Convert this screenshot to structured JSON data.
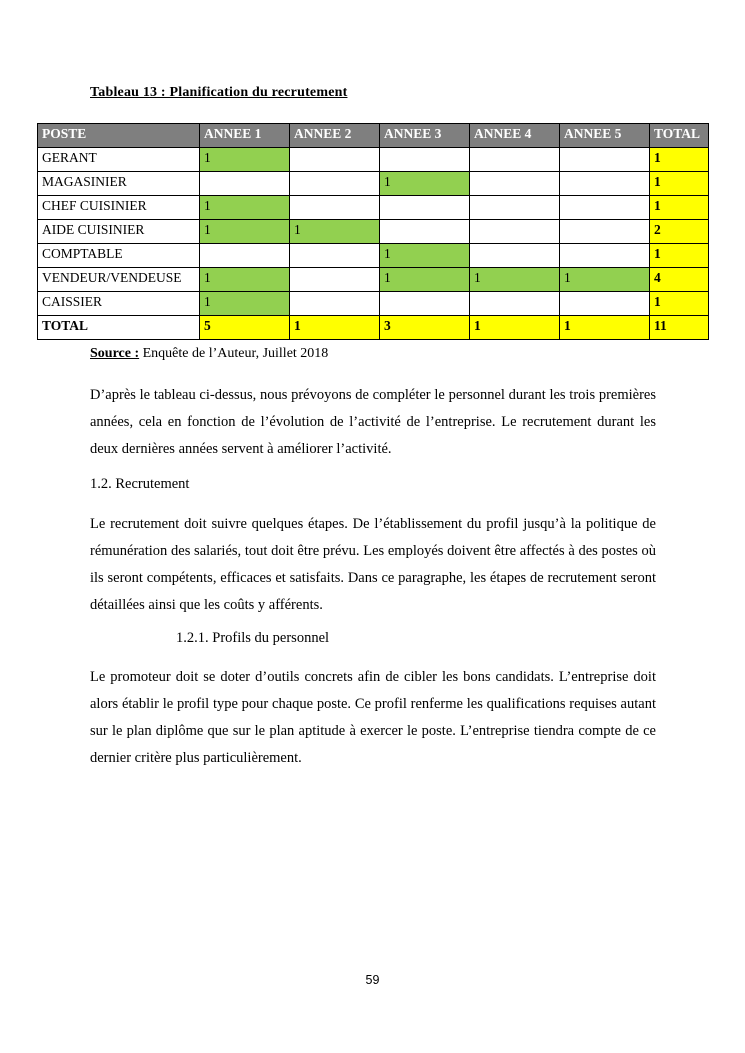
{
  "document": {
    "table_caption": "Tableau 13 : Planification du recrutement",
    "source": {
      "label": "Source :",
      "text": " Enquête de l’Auteur, Juillet 2018"
    },
    "paragraph_1": "D’après le tableau ci-dessus, nous prévoyons de compléter le personnel durant les trois premières années, cela en fonction de l’évolution de l’activité de l’entreprise. Le recrutement durant les deux dernières années servent à améliorer l’activité.",
    "heading_1_2": "1.2. Recrutement",
    "paragraph_2": "Le recrutement doit suivre quelques étapes. De l’établissement du profil jusqu’à la politique de rémunération des salariés, tout doit être prévu. Les employés doivent être affectés à des postes où ils seront compétents, efficaces et satisfaits. Dans ce paragraphe, les étapes de recrutement seront détaillées ainsi que les coûts y afférents.",
    "heading_1_2_1": "1.2.1. Profils du personnel",
    "paragraph_3": "Le promoteur doit se doter d’outils concrets afin de cibler les bons candidats. L’entreprise doit alors établir le profil type pour chaque poste. Ce profil renferme les qualifications requises autant sur le plan diplôme que sur le plan aptitude à exercer le poste. L’entreprise tiendra compte de ce dernier critère plus particulièrement.",
    "page_number": "59"
  },
  "table": {
    "headers": [
      "POSTE",
      "ANNEE 1",
      "ANNEE 2",
      "ANNEE 3",
      "ANNEE 4",
      "ANNEE 5",
      "TOTAL"
    ],
    "rows": [
      {
        "poste": "GERANT",
        "years": [
          "1",
          "",
          "",
          "",
          ""
        ],
        "total": "1"
      },
      {
        "poste": "MAGASINIER",
        "years": [
          "",
          "",
          "1",
          "",
          ""
        ],
        "total": "1"
      },
      {
        "poste": "CHEF CUISINIER",
        "years": [
          "1",
          "",
          "",
          "",
          ""
        ],
        "total": "1"
      },
      {
        "poste": "AIDE CUISINIER",
        "years": [
          "1",
          "1",
          "",
          "",
          ""
        ],
        "total": "2"
      },
      {
        "poste": "COMPTABLE",
        "years": [
          "",
          "",
          "1",
          "",
          ""
        ],
        "total": "1"
      },
      {
        "poste": "VENDEUR/VENDEUSE",
        "years": [
          "1",
          "",
          "1",
          "1",
          "1"
        ],
        "total": "4"
      },
      {
        "poste": "CAISSIER",
        "years": [
          "1",
          "",
          "",
          "",
          ""
        ],
        "total": "1"
      }
    ],
    "total_row": {
      "label": "TOTAL",
      "years": [
        "5",
        "1",
        "3",
        "1",
        "1"
      ],
      "total": "11"
    },
    "colors": {
      "header_bg": "#7f7f7f",
      "header_text": "#ffffff",
      "filled_cell_bg": "#92d050",
      "total_bg": "#ffff00",
      "border": "#000000"
    }
  }
}
